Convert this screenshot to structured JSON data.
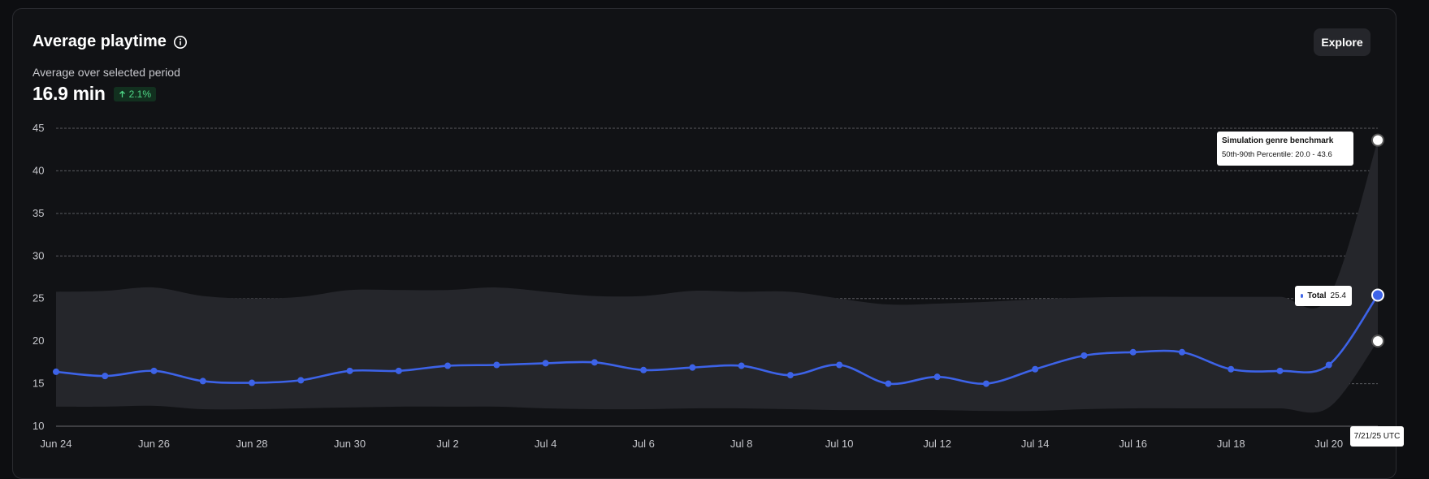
{
  "panel": {
    "title": "Average playtime",
    "explore_label": "Explore",
    "subtitle": "Average over selected period",
    "value": "16.9 min",
    "change": "2.1%"
  },
  "colors": {
    "total_line": "#3d63e8",
    "band": "#25262b",
    "grid": "#5a5b60",
    "change_up": "#4fd887"
  },
  "icons": {
    "info": "info-icon",
    "up_arrow": "arrow-up-icon"
  },
  "chart_data": {
    "type": "line",
    "title": "Average playtime",
    "ylim": [
      10,
      45
    ],
    "y_ticks": [
      10,
      15,
      20,
      25,
      30,
      35,
      40,
      45
    ],
    "x": [
      "Jun 24",
      "Jun 25",
      "Jun 26",
      "Jun 27",
      "Jun 28",
      "Jun 29",
      "Jun 30",
      "Jul 1",
      "Jul 2",
      "Jul 3",
      "Jul 4",
      "Jul 5",
      "Jul 6",
      "Jul 7",
      "Jul 8",
      "Jul 9",
      "Jul 10",
      "Jul 11",
      "Jul 12",
      "Jul 13",
      "Jul 14",
      "Jul 15",
      "Jul 16",
      "Jul 17",
      "Jul 18",
      "Jul 19",
      "Jul 20",
      "Jul 21"
    ],
    "x_tick_labels": [
      "Jun 24",
      "Jun 26",
      "Jun 28",
      "Jun 30",
      "Jul 2",
      "Jul 4",
      "Jul 6",
      "Jul 8",
      "Jul 10",
      "Jul 12",
      "Jul 14",
      "Jul 16",
      "Jul 18",
      "Jul 20"
    ],
    "series": [
      {
        "name": "Total",
        "values": [
          16.4,
          15.9,
          16.5,
          15.3,
          15.1,
          15.4,
          16.5,
          16.5,
          17.1,
          17.2,
          17.4,
          17.5,
          16.6,
          16.9,
          17.1,
          16.0,
          17.2,
          15.0,
          15.8,
          15.0,
          16.7,
          18.3,
          18.7,
          18.7,
          16.7,
          16.5,
          17.2,
          25.4
        ]
      }
    ],
    "benchmark": {
      "name": "Simulation genre benchmark",
      "label": "50th-90th Percentile",
      "low": [
        12.3,
        12.3,
        12.4,
        12.0,
        12.0,
        12.1,
        12.2,
        12.3,
        12.3,
        12.3,
        12.1,
        12.0,
        12.0,
        12.1,
        12.1,
        12.0,
        11.9,
        11.9,
        11.9,
        11.8,
        11.8,
        12.0,
        12.1,
        12.1,
        12.1,
        12.1,
        12.2,
        20.0
      ],
      "high": [
        25.8,
        25.9,
        26.3,
        25.3,
        25.0,
        25.2,
        26.0,
        26.0,
        26.0,
        26.3,
        25.8,
        25.3,
        25.3,
        25.9,
        25.8,
        25.8,
        25.0,
        24.3,
        24.4,
        24.6,
        24.9,
        25.1,
        25.2,
        25.2,
        25.2,
        25.2,
        25.2,
        43.6
      ]
    },
    "tooltips": {
      "benchmark_title": "Simulation genre benchmark",
      "benchmark_range": "50th-90th Percentile: 20.0 - 43.6",
      "total_label": "Total",
      "total_value": "25.4",
      "date": "7/21/25 UTC"
    }
  }
}
